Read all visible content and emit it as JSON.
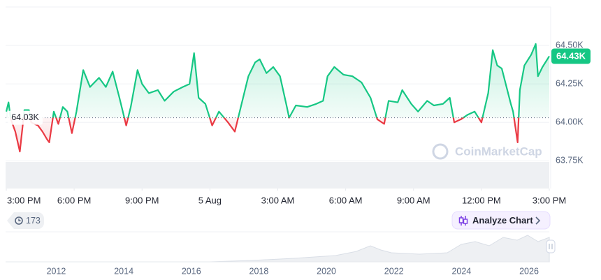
{
  "chart_data": {
    "type": "line",
    "x": [
      0,
      0.1,
      0.2,
      0.4,
      0.6,
      0.8,
      1.0,
      1.1,
      1.4,
      1.6,
      1.8,
      1.9,
      2.1,
      2.3,
      2.5,
      2.7,
      2.9,
      3.1,
      3.4,
      3.7,
      4.1,
      4.4,
      4.7,
      5.0,
      5.3,
      5.5,
      5.8,
      6.0,
      6.3,
      6.7,
      7.0,
      7.4,
      7.8,
      8.1,
      8.3,
      8.5,
      8.8,
      9.1,
      9.4,
      9.8,
      10.1,
      10.4,
      10.7,
      11.0,
      11.2,
      11.5,
      11.8,
      12.1,
      12.4,
      12.5,
      12.8,
      13.3,
      13.7,
      14.0,
      14.2,
      14.5,
      14.9,
      15.3,
      15.7,
      16.1,
      16.4,
      16.7,
      16.9,
      17.3,
      17.5,
      17.9,
      18.2,
      18.6,
      18.9,
      19.3,
      19.6,
      19.8,
      20.1,
      20.4,
      20.7,
      21.0,
      21.3,
      21.5,
      21.7,
      21.9,
      22.3,
      22.4,
      22.6,
      22.7,
      22.9,
      23.2,
      23.4,
      23.5,
      23.7,
      24.0
    ],
    "series": [
      {
        "name": "Price",
        "color": "#16c784",
        "color_below": "#ea3943",
        "values": [
          64.07,
          64.13,
          64.02,
          63.94,
          63.81,
          64.08,
          64.08,
          64.0,
          63.98,
          63.94,
          63.89,
          63.87,
          64.07,
          63.99,
          64.1,
          64.07,
          63.93,
          64.07,
          64.34,
          64.23,
          64.29,
          64.23,
          64.33,
          64.16,
          63.98,
          64.1,
          64.34,
          64.25,
          64.19,
          64.21,
          64.14,
          64.2,
          64.23,
          64.25,
          64.45,
          64.16,
          64.12,
          63.98,
          64.07,
          64.0,
          63.94,
          64.12,
          64.3,
          64.39,
          64.41,
          64.32,
          64.36,
          64.3,
          64.1,
          64.03,
          64.11,
          64.1,
          64.12,
          64.14,
          64.3,
          64.36,
          64.31,
          64.3,
          64.26,
          64.16,
          64.02,
          63.99,
          64.14,
          64.13,
          64.21,
          64.12,
          64.07,
          64.14,
          64.11,
          64.12,
          64.16,
          64.0,
          64.02,
          64.05,
          64.07,
          64.0,
          64.19,
          64.47,
          64.37,
          64.35,
          64.12,
          64.07,
          63.87,
          64.21,
          64.37,
          64.44,
          64.51,
          64.3,
          64.36,
          64.43
        ]
      }
    ],
    "xlim": [
      0,
      24
    ],
    "xticks": [
      {
        "value": 0,
        "label": "3:00 PM"
      },
      {
        "value": 3,
        "label": "6:00 PM"
      },
      {
        "value": 6,
        "label": "9:00 PM"
      },
      {
        "value": 9,
        "label": "5 Aug"
      },
      {
        "value": 12,
        "label": "3:00 AM"
      },
      {
        "value": 15,
        "label": "6:00 AM"
      },
      {
        "value": 18,
        "label": "9:00 AM"
      },
      {
        "value": 21,
        "label": "12:00 PM"
      },
      {
        "value": 24,
        "label": "3:00 PM"
      }
    ],
    "ylim": [
      63.57,
      64.75
    ],
    "yticks": [
      {
        "value": 63.75,
        "label": "63.75K"
      },
      {
        "value": 64.0,
        "label": "64.00K"
      },
      {
        "value": 64.25,
        "label": "64.25K"
      },
      {
        "value": 64.5,
        "label": "64.50K"
      }
    ],
    "baseline": {
      "value": 64.03,
      "label": "64.03K"
    },
    "current": {
      "value": 64.43,
      "label": "64.43K"
    },
    "grid": true
  },
  "watermark": "CoinMarketCap",
  "badge": "173",
  "button": "Analyze Chart",
  "navigator": {
    "xlim": [
      2010.5,
      2026.6
    ],
    "xticks": [
      2012,
      2014,
      2016,
      2018,
      2020,
      2022,
      2024,
      2026
    ]
  }
}
